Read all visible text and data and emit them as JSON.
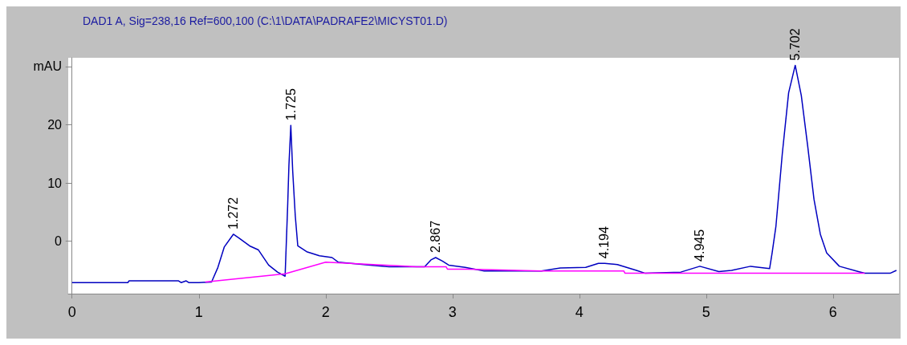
{
  "chart_data": {
    "type": "line",
    "title": "DAD1 A, Sig=238,16 Ref=600,100 (C:\\1\\DATA\\PADRAFE2\\MICYST01.D)",
    "xlim": [
      -0.03,
      6.52
    ],
    "xticks": [
      0,
      1,
      2,
      3,
      4,
      5,
      6
    ],
    "ylim": [
      -9,
      31.5
    ],
    "yticks": [
      0,
      10,
      20,
      {
        "value": 30,
        "label": "mAU"
      }
    ],
    "marker": "none",
    "line_style": "solid",
    "series": [
      {
        "color": "#0000c0",
        "x": [
          0,
          0.44,
          0.45,
          0.84,
          0.86,
          0.9,
          0.92,
          1.0,
          1.1,
          1.15,
          1.2,
          1.272,
          1.32,
          1.4,
          1.47,
          1.55,
          1.62,
          1.68,
          1.7,
          1.71,
          1.725,
          1.74,
          1.76,
          1.78,
          1.85,
          1.95,
          2.05,
          2.1,
          2.35,
          2.5,
          2.78,
          2.83,
          2.867,
          2.92,
          2.97,
          3.1,
          3.25,
          3.7,
          3.85,
          4.05,
          4.15,
          4.2,
          4.3,
          4.45,
          4.52,
          4.8,
          4.95,
          5.1,
          5.2,
          5.35,
          5.5,
          5.52,
          5.55,
          5.6,
          5.65,
          5.702,
          5.75,
          5.8,
          5.85,
          5.9,
          5.95,
          6.05,
          6.2,
          6.25,
          6.45,
          6.5
        ],
        "values": [
          -7.1,
          -7.1,
          -6.8,
          -6.8,
          -7.1,
          -6.8,
          -7.1,
          -7.1,
          -7.0,
          -4.5,
          -1.0,
          1.2,
          0.5,
          -0.8,
          -1.5,
          -4.1,
          -5.3,
          -6.0,
          6.0,
          13,
          19.9,
          12,
          4.4,
          -0.8,
          -1.8,
          -2.5,
          -2.8,
          -3.6,
          -4.1,
          -4.4,
          -4.4,
          -3.2,
          -2.8,
          -3.4,
          -4.1,
          -4.5,
          -5.1,
          -5.1,
          -4.6,
          -4.5,
          -3.8,
          -3.8,
          -4.0,
          -5.0,
          -5.5,
          -5.3,
          -4.3,
          -5.2,
          -5.0,
          -4.3,
          -4.7,
          -2.0,
          2.6,
          15,
          25.5,
          30.2,
          25,
          16.4,
          7.2,
          1.2,
          -2.0,
          -4.3,
          -5.2,
          -5.5,
          -5.5,
          -5.0
        ]
      },
      {
        "color": "#ff00ff",
        "x": [
          1.05,
          1.68,
          2.0,
          2.72,
          2.95,
          2.96,
          3.12,
          3.7,
          4.35,
          4.36,
          6.25
        ],
        "values": [
          -7.0,
          -5.6,
          -3.6,
          -4.4,
          -4.4,
          -4.8,
          -4.8,
          -5.1,
          -5.1,
          -5.5,
          -5.5
        ]
      }
    ],
    "annotations": [
      {
        "text": "1.272",
        "x": 1.272,
        "y": 1.2
      },
      {
        "text": "1.725",
        "x": 1.725,
        "y": 19.9
      },
      {
        "text": "2.867",
        "x": 2.867,
        "y": -2.8
      },
      {
        "text": "4.194",
        "x": 4.194,
        "y": -3.8
      },
      {
        "text": "4.945",
        "x": 4.945,
        "y": -4.3
      },
      {
        "text": "5.702",
        "x": 5.702,
        "y": 30.2
      }
    ]
  }
}
